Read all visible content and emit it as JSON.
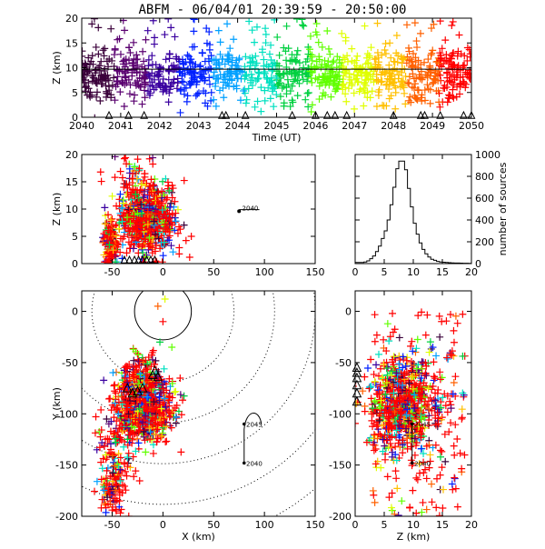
{
  "title": "ABFM - 06/04/01 20:39:59 - 20:50:00",
  "colors": {
    "axis": "#000000",
    "range_rings": "#000000",
    "palette": [
      "#3a003a",
      "#5a0070",
      "#3a00a0",
      "#0020ff",
      "#00a0ff",
      "#00e0c0",
      "#00d040",
      "#60ff00",
      "#e0ff00",
      "#ffc000",
      "#ff6000",
      "#ff0000"
    ]
  },
  "chart_data": [
    {
      "id": "time_height",
      "type": "scatter",
      "xlabel": "Time (UT)",
      "ylabel": "Z (km)",
      "xlim": [
        2040,
        2050
      ],
      "ylim": [
        0,
        20
      ],
      "xticks": [
        "2040",
        "2041",
        "2042",
        "2043",
        "2044",
        "2045",
        "2046",
        "2047",
        "2048",
        "2049",
        "2050"
      ],
      "yticks": [
        "0",
        "5",
        "10",
        "15",
        "20"
      ],
      "reference_line_z": 9.7,
      "station_triangles_x": [
        2040.7,
        2041.2,
        2041.6,
        2043.6,
        2043.7,
        2044.2,
        2045.4,
        2046.0,
        2046.3,
        2046.5,
        2046.8,
        2048.0,
        2048.7,
        2048.8,
        2049.2,
        2049.8,
        2050.0
      ],
      "color_by": "time"
    },
    {
      "id": "x_z",
      "type": "scatter",
      "xlabel": "",
      "ylabel": "Z (km)",
      "xlim": [
        -80,
        150
      ],
      "ylim": [
        0,
        20
      ],
      "xticks": [
        "-50",
        "0",
        "50",
        "100",
        "150"
      ],
      "yticks": [
        "0",
        "5",
        "10",
        "15",
        "20"
      ],
      "annotation": "2040"
    },
    {
      "id": "histogram",
      "type": "bar",
      "xlabel": "",
      "ylabel": "number of sources",
      "xlim": [
        0,
        20
      ],
      "ylim": [
        0,
        1000
      ],
      "xticks": [
        "0",
        "5",
        "10",
        "15",
        "20"
      ],
      "yticks": [
        "0",
        "200",
        "400",
        "600",
        "800",
        "1000"
      ],
      "bin_width_km": 0.5,
      "values": [
        10,
        10,
        10,
        15,
        25,
        45,
        70,
        110,
        160,
        230,
        300,
        400,
        540,
        700,
        870,
        940,
        940,
        860,
        690,
        520,
        370,
        270,
        190,
        130,
        90,
        60,
        40,
        30,
        20,
        15,
        12,
        10,
        8,
        6,
        5,
        5,
        4,
        3,
        3,
        2
      ]
    },
    {
      "id": "x_y",
      "type": "scatter",
      "xlabel": "X (km)",
      "ylabel": "Y (km)",
      "xlim": [
        -80,
        150
      ],
      "ylim": [
        -200,
        20
      ],
      "xticks": [
        "-50",
        "0",
        "50",
        "100",
        "150"
      ],
      "yticks": [
        "-200",
        "-150",
        "-100",
        "-50",
        "0"
      ],
      "track_labels": [
        "2045",
        "2040"
      ]
    },
    {
      "id": "z_y",
      "type": "scatter",
      "xlabel": "Z (km)",
      "ylabel": "",
      "xlim": [
        0,
        20
      ],
      "ylim": [
        -200,
        20
      ],
      "xticks": [
        "0",
        "5",
        "10",
        "15",
        "20"
      ],
      "yticks": [
        "-200",
        "-150",
        "-100",
        "-50",
        "0"
      ],
      "track_labels": [
        "2045",
        "2040"
      ]
    }
  ]
}
